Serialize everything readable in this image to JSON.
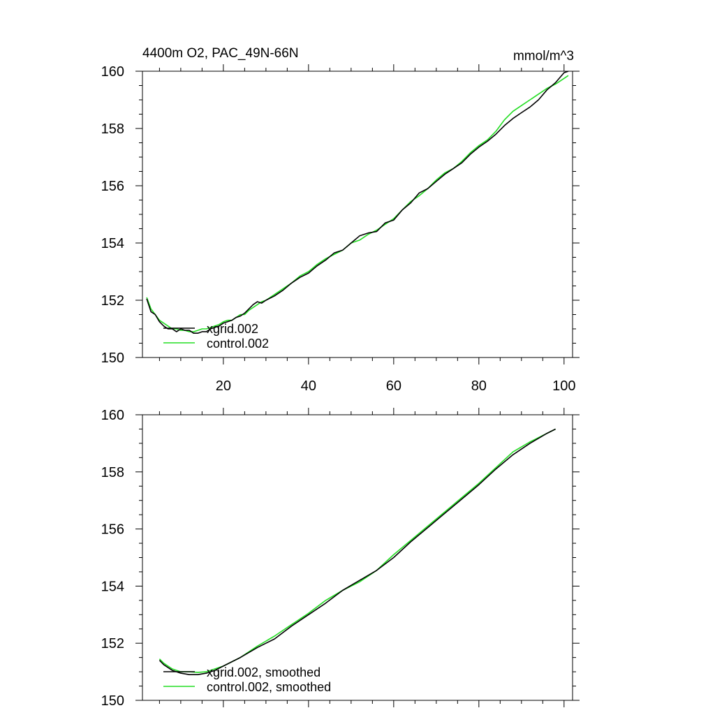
{
  "colors": {
    "xgrid": "#000000",
    "control": "#22dd22",
    "axis": "#000000"
  },
  "chart_data": [
    {
      "type": "line",
      "title": "4400m O2, PAC_49N-66N",
      "units": "mmol/m^3",
      "xlim": [
        1,
        102
      ],
      "ylim": [
        150,
        160
      ],
      "x_ticks": [
        20,
        40,
        60,
        80,
        100
      ],
      "x_tick_labels": [
        "20",
        "40",
        "60",
        "80",
        "100"
      ],
      "y_ticks": [
        150,
        152,
        154,
        156,
        158,
        160
      ],
      "y_tick_labels": [
        "150",
        "152",
        "154",
        "156",
        "158",
        "160"
      ],
      "grid": false,
      "legend_position": "bottom-left",
      "series": [
        {
          "name": "xgrid.002",
          "color": "#000000",
          "x": [
            2,
            3,
            4,
            5,
            6,
            7,
            8,
            9,
            10,
            11,
            12,
            13,
            14,
            15,
            16,
            17,
            18,
            19,
            20,
            21,
            22,
            23,
            24,
            25,
            26,
            27,
            28,
            29,
            30,
            32,
            34,
            36,
            38,
            40,
            42,
            44,
            46,
            48,
            50,
            52,
            54,
            56,
            58,
            60,
            62,
            64,
            66,
            68,
            70,
            72,
            74,
            76,
            78,
            80,
            82,
            84,
            86,
            88,
            90,
            92,
            94,
            96,
            98,
            100,
            101
          ],
          "values": [
            152.05,
            151.6,
            151.5,
            151.25,
            151.1,
            151.0,
            151.0,
            150.9,
            151.0,
            150.95,
            150.95,
            150.85,
            150.85,
            150.9,
            150.9,
            151.0,
            151.05,
            151.1,
            151.2,
            151.25,
            151.3,
            151.4,
            151.45,
            151.55,
            151.7,
            151.85,
            151.95,
            151.9,
            152.0,
            152.15,
            152.35,
            152.6,
            152.8,
            152.95,
            153.2,
            153.4,
            153.65,
            153.75,
            154.0,
            154.25,
            154.35,
            154.4,
            154.7,
            154.8,
            155.15,
            155.4,
            155.75,
            155.9,
            156.15,
            156.4,
            156.6,
            156.8,
            157.1,
            157.35,
            157.55,
            157.8,
            158.1,
            158.35,
            158.55,
            158.75,
            159.0,
            159.35,
            159.6,
            159.95,
            160.0
          ]
        },
        {
          "name": "control.002",
          "color": "#22dd22",
          "x": [
            2,
            3,
            4,
            5,
            6,
            7,
            8,
            9,
            10,
            11,
            12,
            13,
            14,
            15,
            16,
            17,
            18,
            19,
            20,
            21,
            22,
            23,
            24,
            25,
            26,
            27,
            28,
            29,
            30,
            32,
            34,
            36,
            38,
            40,
            42,
            44,
            46,
            48,
            50,
            52,
            54,
            56,
            58,
            60,
            62,
            64,
            66,
            68,
            70,
            72,
            74,
            76,
            78,
            80,
            82,
            84,
            86,
            88,
            90,
            92,
            94,
            96,
            98,
            100,
            101
          ],
          "values": [
            152.1,
            151.7,
            151.5,
            151.3,
            151.2,
            151.1,
            151.0,
            151.0,
            150.95,
            150.95,
            150.9,
            150.9,
            150.95,
            151.0,
            151.0,
            151.05,
            151.1,
            151.15,
            151.25,
            151.3,
            151.3,
            151.4,
            151.5,
            151.5,
            151.65,
            151.75,
            151.85,
            151.95,
            152.0,
            152.2,
            152.4,
            152.6,
            152.85,
            153.0,
            153.25,
            153.45,
            153.6,
            153.75,
            154.0,
            154.1,
            154.3,
            154.45,
            154.65,
            154.85,
            155.15,
            155.45,
            155.65,
            155.9,
            156.2,
            156.45,
            156.6,
            156.85,
            157.15,
            157.4,
            157.6,
            157.9,
            158.3,
            158.6,
            158.8,
            159.0,
            159.2,
            159.4,
            159.55,
            159.75,
            159.85
          ]
        }
      ]
    },
    {
      "type": "line",
      "xlim": [
        1,
        102
      ],
      "ylim": [
        150,
        160
      ],
      "y_ticks": [
        150,
        152,
        154,
        156,
        158,
        160
      ],
      "y_tick_labels": [
        "150",
        "152",
        "154",
        "156",
        "158",
        "160"
      ],
      "grid": false,
      "legend_position": "bottom-left",
      "series": [
        {
          "name": "xgrid.002, smoothed",
          "color": "#000000",
          "x": [
            5,
            6,
            8,
            10,
            12,
            14,
            16,
            18,
            20,
            24,
            28,
            32,
            36,
            40,
            44,
            48,
            52,
            56,
            60,
            64,
            68,
            72,
            76,
            80,
            84,
            88,
            92,
            96,
            98
          ],
          "values": [
            151.4,
            151.25,
            151.05,
            150.95,
            150.9,
            150.9,
            150.95,
            151.05,
            151.2,
            151.5,
            151.85,
            152.15,
            152.6,
            153.0,
            153.4,
            153.85,
            154.2,
            154.55,
            155.0,
            155.55,
            156.05,
            156.55,
            157.05,
            157.55,
            158.1,
            158.6,
            159.0,
            159.35,
            159.5
          ]
        },
        {
          "name": "control.002, smoothed",
          "color": "#22dd22",
          "x": [
            5,
            6,
            8,
            10,
            12,
            14,
            16,
            18,
            20,
            24,
            28,
            32,
            36,
            40,
            44,
            48,
            52,
            56,
            60,
            64,
            68,
            72,
            76,
            80,
            84,
            88,
            92,
            96,
            98
          ],
          "values": [
            151.45,
            151.3,
            151.1,
            151.0,
            151.0,
            150.98,
            151.0,
            151.1,
            151.2,
            151.5,
            151.9,
            152.25,
            152.65,
            153.05,
            153.5,
            153.85,
            154.15,
            154.55,
            155.1,
            155.6,
            156.1,
            156.6,
            157.1,
            157.6,
            158.15,
            158.7,
            159.05,
            159.35,
            159.5
          ]
        }
      ]
    }
  ]
}
